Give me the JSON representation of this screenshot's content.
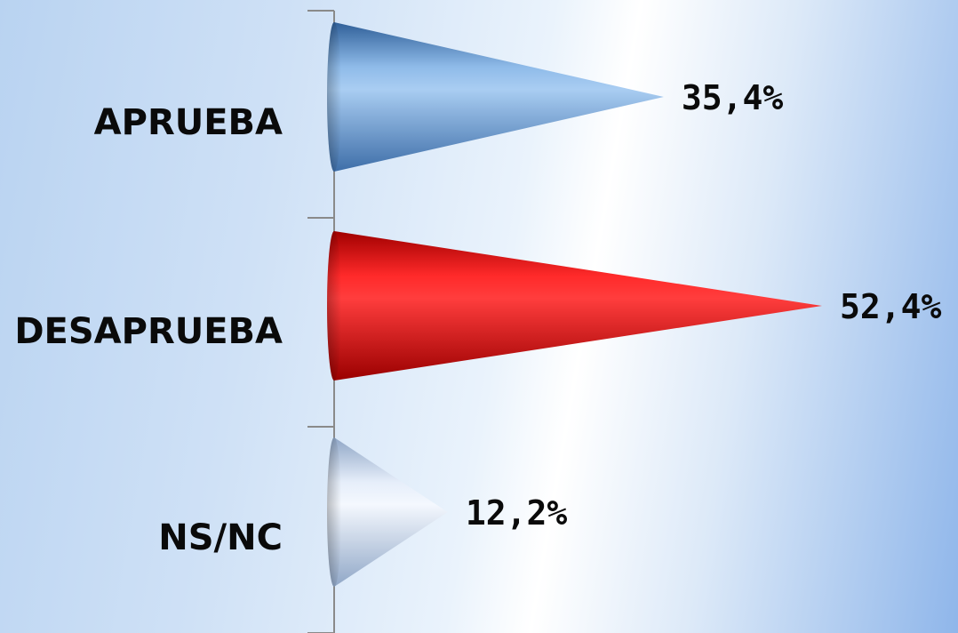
{
  "chart_data": {
    "type": "bar",
    "orientation": "horizontal",
    "bar_shape": "cone",
    "categories": [
      "APRUEBA",
      "DESAPRUEBA",
      "NS/NC"
    ],
    "values": [
      35.4,
      52.4,
      12.2
    ],
    "value_labels": [
      "35,4%",
      "52,4%",
      "12,2%"
    ],
    "colors": [
      "#6f9fd6",
      "#e00000",
      "#c3d5ef"
    ],
    "title": "",
    "xlabel": "",
    "ylabel": "",
    "xlim": [
      0,
      52.4
    ],
    "grid": false,
    "legend": "none"
  }
}
